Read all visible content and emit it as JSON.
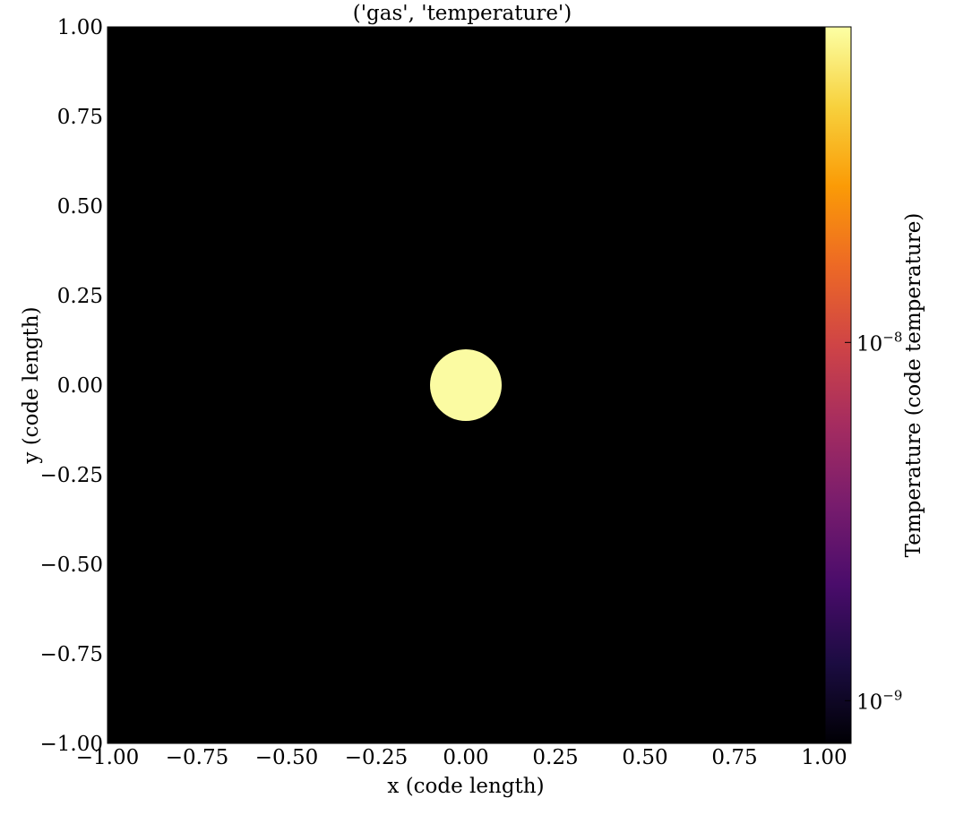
{
  "chart_data": {
    "type": "heatmap",
    "title": "('gas', 'temperature')",
    "xlabel": "x  (code length)",
    "ylabel": "y  (code length)",
    "xlim": [
      -1.0,
      1.0
    ],
    "ylim": [
      -1.0,
      1.0
    ],
    "x_ticks": [
      -1.0,
      -0.75,
      -0.5,
      -0.25,
      0.0,
      0.25,
      0.5,
      0.75,
      1.0
    ],
    "x_tick_labels": [
      "−1.00",
      "−0.75",
      "−0.50",
      "−0.25",
      "0.00",
      "0.25",
      "0.50",
      "0.75",
      "1.00"
    ],
    "y_ticks": [
      1.0,
      0.75,
      0.5,
      0.25,
      0.0,
      -0.25,
      -0.5,
      -0.75,
      -1.0
    ],
    "y_tick_labels": [
      "1.00",
      "0.75",
      "0.50",
      "0.25",
      "0.00",
      "−0.25",
      "−0.50",
      "−0.75",
      "−1.00"
    ],
    "grid": false,
    "background_value_color": "#000000",
    "features": [
      {
        "shape": "disk",
        "center": [
          0.0,
          0.0
        ],
        "radius": 0.1,
        "color": "#fbfba2"
      }
    ],
    "colorbar": {
      "label": "Temperature  (code temperature)",
      "scale": "log",
      "colormap": "inferno",
      "range": [
        7.6e-10,
        7.6e-08
      ],
      "ticks": [
        1e-09,
        1e-08
      ],
      "tick_labels": [
        {
          "base": "10",
          "exp": "−9"
        },
        {
          "base": "10",
          "exp": "−8"
        }
      ],
      "stops": [
        "#000004",
        "#1b0c41",
        "#4a0c6b",
        "#781c6d",
        "#a52c60",
        "#cf4446",
        "#ed6925",
        "#fb9b06",
        "#f7d13d",
        "#fcffa4"
      ]
    }
  }
}
